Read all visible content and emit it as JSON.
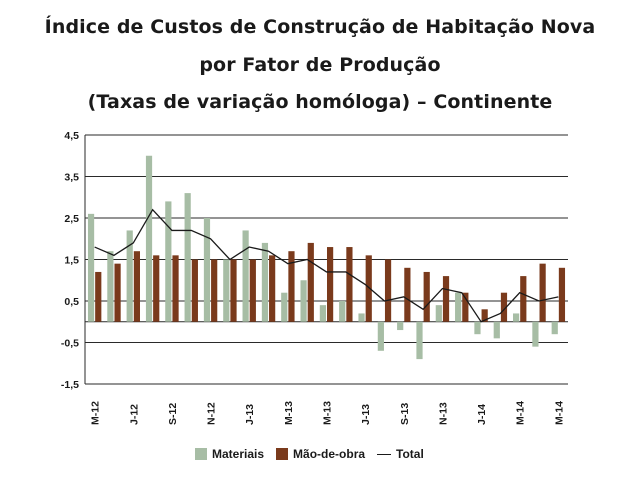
{
  "chart_data": {
    "type": "bar",
    "title_lines": [
      "Índice de Custos de Construção de Habitação Nova",
      "por Fator de Produção",
      "(Taxas de variação homóloga) – Continente"
    ],
    "x_tick_labels": [
      "M-12",
      "J-12",
      "S-12",
      "N-12",
      "J-13",
      "M-13",
      "M-13",
      "J-13",
      "S-13",
      "N-13",
      "J-14",
      "M-14",
      "M-14"
    ],
    "y_tick_labels": [
      "4,5",
      "3,5",
      "2,5",
      "1,5",
      "0,5",
      "-0,5",
      "-1,5"
    ],
    "ylim": [
      -1.5,
      4.5
    ],
    "grid": true,
    "legend_position": "bottom",
    "series": [
      {
        "name": "Materiais",
        "kind": "bar",
        "color": "#a7bda5",
        "values": [
          2.6,
          1.7,
          2.2,
          4.0,
          2.9,
          3.1,
          2.5,
          1.5,
          2.2,
          1.9,
          0.7,
          1.0,
          0.4,
          0.5,
          0.2,
          -0.7,
          -0.2,
          -0.9,
          0.4,
          0.7,
          -0.3,
          -0.4,
          0.2,
          -0.6,
          -0.3
        ]
      },
      {
        "name": "Mão-de-obra",
        "kind": "bar",
        "color": "#7a3a1c",
        "values": [
          1.2,
          1.4,
          1.7,
          1.6,
          1.6,
          1.5,
          1.5,
          1.5,
          1.5,
          1.6,
          1.7,
          1.9,
          1.8,
          1.8,
          1.6,
          1.5,
          1.3,
          1.2,
          1.1,
          0.7,
          0.3,
          0.7,
          1.1,
          1.4,
          1.3
        ]
      },
      {
        "name": "Total",
        "kind": "line",
        "color": "#1a1a1a",
        "values": [
          1.8,
          1.6,
          1.9,
          2.7,
          2.2,
          2.2,
          2.0,
          1.5,
          1.8,
          1.7,
          1.4,
          1.5,
          1.2,
          1.2,
          0.9,
          0.5,
          0.6,
          0.3,
          0.8,
          0.7,
          0.0,
          0.2,
          0.7,
          0.5,
          0.6
        ]
      }
    ]
  }
}
